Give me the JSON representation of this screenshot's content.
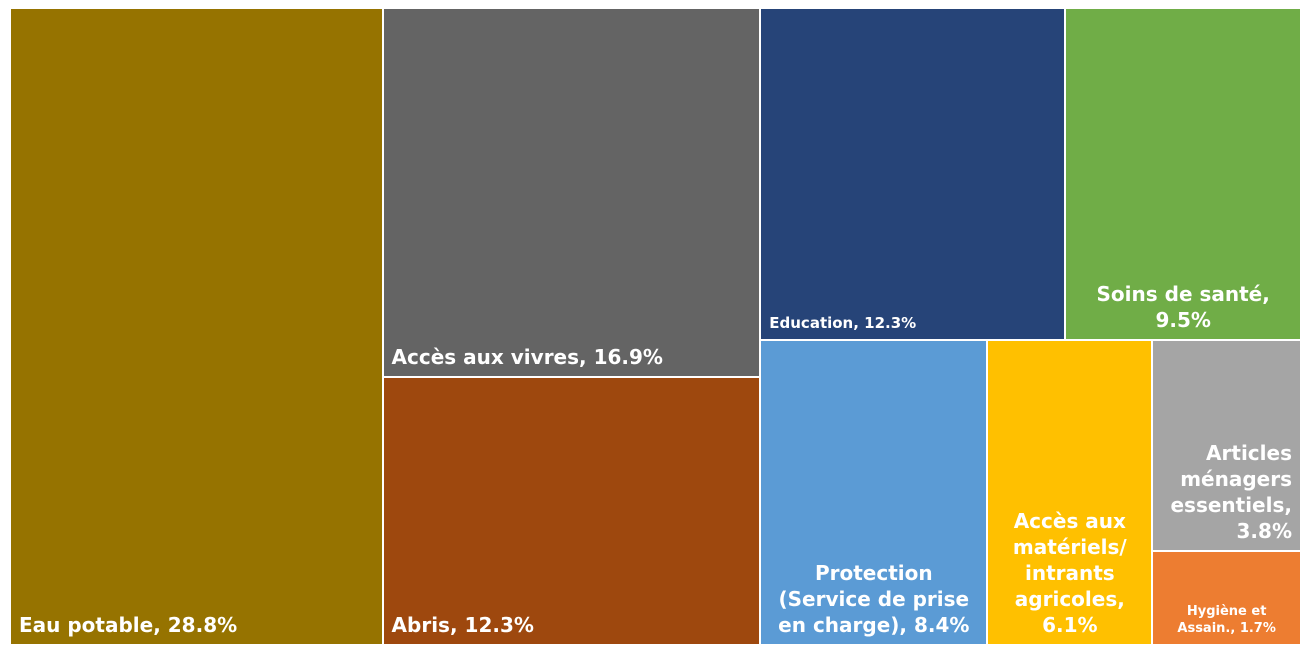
{
  "chart_data": {
    "type": "treemap",
    "values": [
      28.8,
      16.9,
      12.3,
      12.3,
      9.5,
      8.4,
      6.1,
      3.8,
      1.7
    ],
    "value_labels": [
      "Eau potable, 28.8%",
      "Accès aux vivres, 16.9%",
      "Abris, 12.3%",
      "Education, 12.3%",
      "Soins de santé, 9.5%",
      "Protection (Service de prise en charge), 8.4%",
      "Accès aux matériels/ intrants agricoles, 6.1%",
      "Articles ménagers essentiels, 3.8%",
      "Hygiène et Assain., 1.7%"
    ],
    "colors": [
      "#967300",
      "#646464",
      "#9e480e",
      "#264478",
      "#70ad47",
      "#5b9bd5",
      "#ffc000",
      "#a5a5a5",
      "#ed7d31"
    ]
  }
}
